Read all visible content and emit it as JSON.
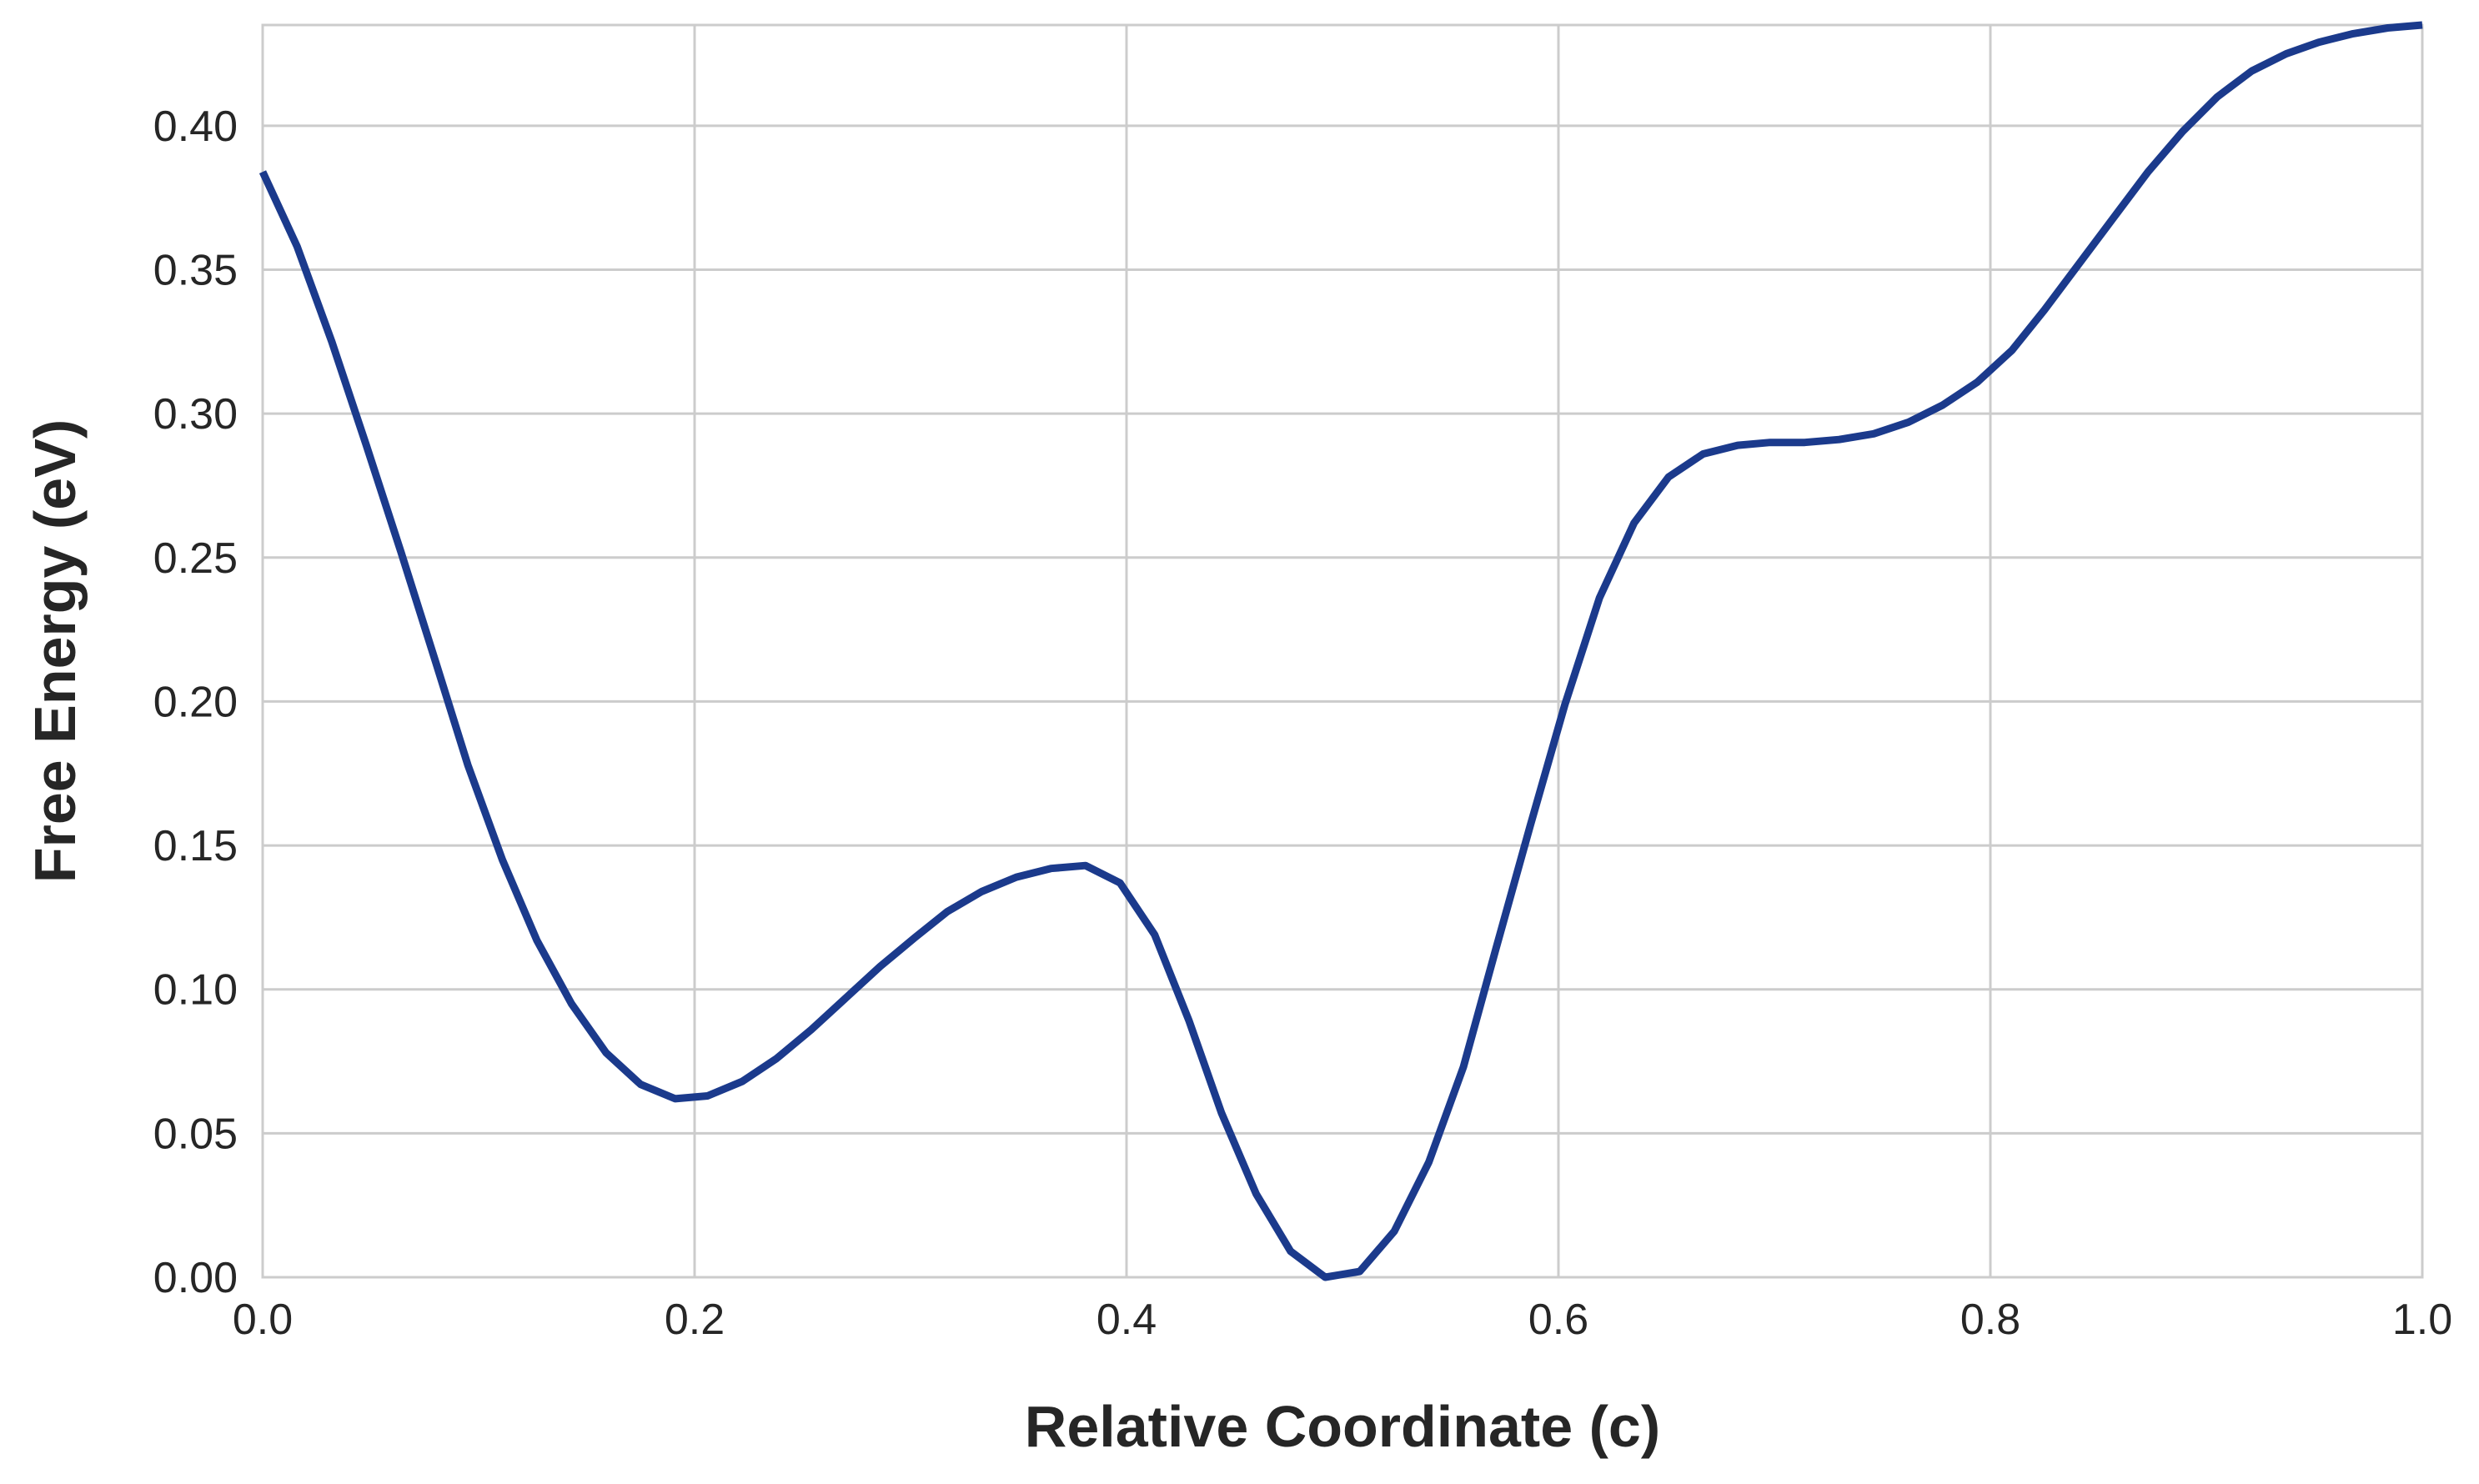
{
  "chart_data": {
    "type": "line",
    "title": "",
    "xlabel": "Relative Coordinate (c)",
    "ylabel": "Free Energy (eV)",
    "xlim": [
      0.0,
      1.0
    ],
    "ylim": [
      0.0,
      0.435
    ],
    "grid": true,
    "legend": "none",
    "xticks": [
      "0.0",
      "0.2",
      "0.4",
      "0.6",
      "0.8",
      "1.0"
    ],
    "yticks": [
      "0.00",
      "0.05",
      "0.10",
      "0.15",
      "0.20",
      "0.25",
      "0.30",
      "0.35",
      "0.40"
    ],
    "colors": {
      "line": "#1b3a8c",
      "grid": "#cccccc",
      "text": "#262626"
    },
    "series": [
      {
        "x": [
          0.0,
          0.016,
          0.032,
          0.048,
          0.064,
          0.08,
          0.095,
          0.111,
          0.127,
          0.143,
          0.159,
          0.175,
          0.191,
          0.206,
          0.222,
          0.238,
          0.254,
          0.27,
          0.286,
          0.302,
          0.317,
          0.333,
          0.349,
          0.365,
          0.381,
          0.397,
          0.413,
          0.429,
          0.444,
          0.46,
          0.476,
          0.492,
          0.508,
          0.524,
          0.54,
          0.556,
          0.571,
          0.587,
          0.603,
          0.619,
          0.635,
          0.651,
          0.667,
          0.683,
          0.698,
          0.714,
          0.73,
          0.746,
          0.762,
          0.778,
          0.794,
          0.81,
          0.825,
          0.841,
          0.857,
          0.873,
          0.889,
          0.905,
          0.921,
          0.937,
          0.952,
          0.968,
          0.984,
          1.0
        ],
        "values": [
          0.384,
          0.358,
          0.325,
          0.289,
          0.252,
          0.214,
          0.178,
          0.145,
          0.117,
          0.095,
          0.078,
          0.067,
          0.062,
          0.063,
          0.068,
          0.076,
          0.086,
          0.097,
          0.108,
          0.118,
          0.127,
          0.134,
          0.139,
          0.142,
          0.143,
          0.137,
          0.119,
          0.089,
          0.057,
          0.029,
          0.009,
          0.0,
          0.002,
          0.016,
          0.04,
          0.073,
          0.114,
          0.157,
          0.199,
          0.236,
          0.262,
          0.278,
          0.286,
          0.289,
          0.29,
          0.29,
          0.291,
          0.293,
          0.297,
          0.303,
          0.311,
          0.322,
          0.336,
          0.352,
          0.368,
          0.384,
          0.398,
          0.41,
          0.419,
          0.425,
          0.429,
          0.432,
          0.434,
          0.435
        ]
      }
    ]
  }
}
